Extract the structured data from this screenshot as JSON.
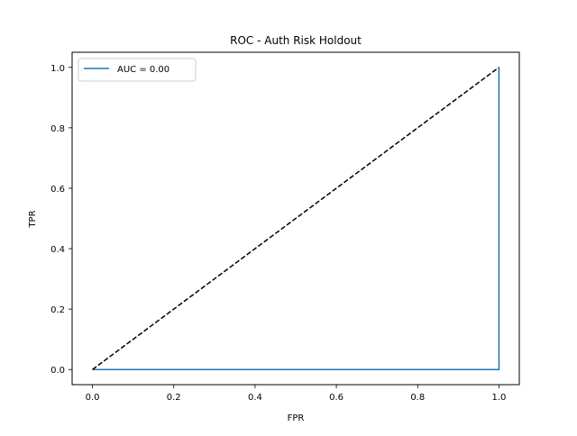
{
  "chart_data": {
    "type": "line",
    "title": "ROC - Auth Risk Holdout",
    "xlabel": "FPR",
    "ylabel": "TPR",
    "xlim": [
      -0.05,
      1.05
    ],
    "ylim": [
      -0.05,
      1.05
    ],
    "x_ticks": [
      "0.0",
      "0.2",
      "0.4",
      "0.6",
      "0.8",
      "1.0"
    ],
    "y_ticks": [
      "0.0",
      "0.2",
      "0.4",
      "0.6",
      "0.8",
      "1.0"
    ],
    "grid": false,
    "legend_position": "top-left",
    "series": [
      {
        "name": "AUC = 0.00",
        "color": "#1f77b4",
        "style": "solid",
        "x": [
          0.0,
          1.0,
          1.0
        ],
        "y": [
          0.0,
          0.0,
          1.0
        ]
      },
      {
        "color": "#000000",
        "style": "dashed",
        "x": [
          0.0,
          1.0
        ],
        "y": [
          0.0,
          1.0
        ]
      }
    ]
  }
}
